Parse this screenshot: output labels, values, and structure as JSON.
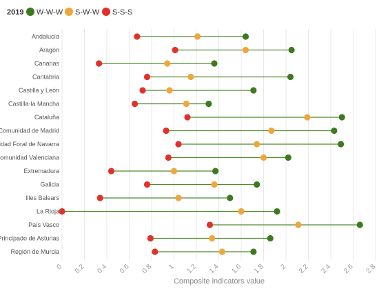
{
  "chart_data": {
    "type": "dumbbell",
    "year_label": "2019",
    "xlabel": "Composite indicators value",
    "xlim": [
      0,
      2.8
    ],
    "x_ticks": [
      "0",
      "0.2",
      "0.4",
      "0.6",
      "0.8",
      "1",
      "1.2",
      "1.4",
      "1.6",
      "1.8",
      "2",
      "2.2",
      "2.4",
      "2.6",
      "2.8"
    ],
    "x_tick_values": [
      0,
      0.2,
      0.4,
      0.6,
      0.8,
      1.0,
      1.2,
      1.4,
      1.6,
      1.8,
      2.0,
      2.2,
      2.4,
      2.6,
      2.8
    ],
    "series": [
      {
        "name": "W-W-W",
        "color": "#3d7a1f"
      },
      {
        "name": "S-W-W",
        "color": "#f0a73a"
      },
      {
        "name": "S-S-S",
        "color": "#e0312b"
      }
    ],
    "categories": [
      "Andalucía",
      "Aragón",
      "Canarias",
      "Cantabria",
      "Castilla y León",
      "Castilla-la Mancha",
      "Cataluña",
      "Comunidad de Madrid",
      "Comunidad Foral de Navarra",
      "Comunidad Valenciana",
      "Extremadura",
      "Galicia",
      "Illes Balears",
      "La Rioja",
      "País Vasco",
      "Principado de Asturias",
      "Región de Murcia"
    ],
    "values": [
      {
        "W-W-W": 1.64,
        "S-W-W": 1.21,
        "S-S-S": 0.67
      },
      {
        "W-W-W": 2.05,
        "S-W-W": 1.64,
        "S-S-S": 1.01
      },
      {
        "W-W-W": 1.36,
        "S-W-W": 0.94,
        "S-S-S": 0.33
      },
      {
        "W-W-W": 2.04,
        "S-W-W": 1.15,
        "S-S-S": 0.76
      },
      {
        "W-W-W": 1.71,
        "S-W-W": 0.96,
        "S-S-S": 0.72
      },
      {
        "W-W-W": 1.31,
        "S-W-W": 1.11,
        "S-S-S": 0.65
      },
      {
        "W-W-W": 2.5,
        "S-W-W": 2.19,
        "S-S-S": 1.12
      },
      {
        "W-W-W": 2.43,
        "S-W-W": 1.87,
        "S-S-S": 0.93
      },
      {
        "W-W-W": 2.49,
        "S-W-W": 1.74,
        "S-S-S": 1.04
      },
      {
        "W-W-W": 2.02,
        "S-W-W": 1.8,
        "S-S-S": 0.95
      },
      {
        "W-W-W": 1.37,
        "S-W-W": 1.0,
        "S-S-S": 0.44
      },
      {
        "W-W-W": 1.74,
        "S-W-W": 1.36,
        "S-S-S": 0.76
      },
      {
        "W-W-W": 1.5,
        "S-W-W": 1.04,
        "S-S-S": 0.34
      },
      {
        "W-W-W": 1.92,
        "S-W-W": 1.6,
        "S-S-S": 0.0
      },
      {
        "W-W-W": 2.66,
        "S-W-W": 2.11,
        "S-S-S": 1.32
      },
      {
        "W-W-W": 1.86,
        "S-W-W": 1.34,
        "S-S-S": 0.79
      },
      {
        "W-W-W": 1.71,
        "S-W-W": 1.43,
        "S-S-S": 0.83
      }
    ],
    "grid": true,
    "legend_position": "top-left"
  }
}
